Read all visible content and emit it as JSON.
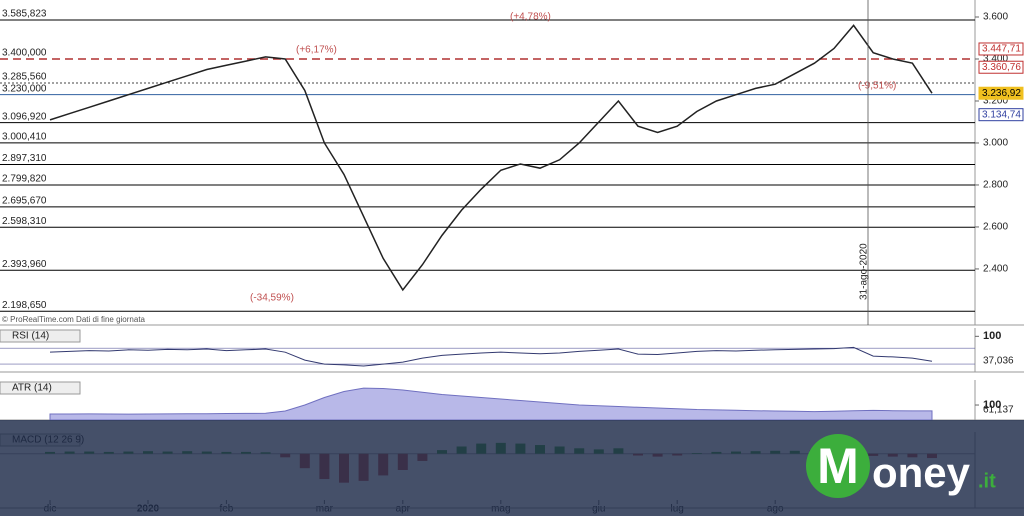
{
  "chart_data": [
    {
      "type": "line",
      "source": "© ProRealTime.com  Dati di fine giornata",
      "categories": [
        "dic",
        null,
        null,
        null,
        null,
        "2020",
        null,
        null,
        null,
        "feb",
        null,
        null,
        null,
        null,
        "mar",
        null,
        null,
        null,
        "apr",
        null,
        null,
        null,
        null,
        "mag",
        null,
        null,
        null,
        null,
        "giu",
        null,
        null,
        null,
        "lug",
        null,
        null,
        null,
        null,
        "ago",
        null,
        null,
        null,
        null,
        null,
        null,
        null,
        null
      ],
      "series": [
        {
          "name": "Prezzo",
          "color": "#222222",
          "values": [
            3110,
            3140,
            3170,
            3200,
            3230,
            3260,
            3290,
            3320,
            3350,
            3370,
            3390,
            3410,
            3400,
            3250,
            3000,
            2850,
            2650,
            2450,
            2300,
            2420,
            2560,
            2680,
            2780,
            2870,
            2900,
            2880,
            2920,
            3000,
            3100,
            3200,
            3080,
            3050,
            3080,
            3150,
            3200,
            3230,
            3260,
            3280,
            3330,
            3380,
            3450,
            3560,
            3430,
            3400,
            3380,
            3237
          ]
        }
      ],
      "ylim": [
        2133,
        3681
      ],
      "yticks": [
        {
          "value": 2400,
          "label": "2.400"
        },
        {
          "value": 2600,
          "label": "2.600"
        },
        {
          "value": 2800,
          "label": "2.800"
        },
        {
          "value": 3000,
          "label": "3.000"
        },
        {
          "value": 3200,
          "label": "3.200"
        },
        {
          "value": 3400,
          "label": "3.400"
        },
        {
          "value": 3600,
          "label": "3.600"
        }
      ],
      "levels": [
        {
          "value": 3585.823,
          "label": "3.585,823",
          "color": "#000000"
        },
        {
          "value": 3400,
          "label": "3.400,000",
          "color": "#b03030"
        },
        {
          "value": 3285.56,
          "label": "3.285,560",
          "color": "#444444"
        },
        {
          "value": 3230,
          "label": "3.230,000",
          "color": "#3060a0"
        },
        {
          "value": 3096.92,
          "label": "3.096,920",
          "color": "#000000"
        },
        {
          "value": 3000.41,
          "label": "3.000,410",
          "color": "#000000"
        },
        {
          "value": 2897.31,
          "label": "2.897,310",
          "color": "#000000"
        },
        {
          "value": 2799.82,
          "label": "2.799,820",
          "color": "#000000"
        },
        {
          "value": 2695.67,
          "label": "2.695,670",
          "color": "#000000"
        },
        {
          "value": 2598.31,
          "label": "2.598,310",
          "color": "#000000"
        },
        {
          "value": 2393.96,
          "label": "2.393,960",
          "color": "#000000"
        },
        {
          "value": 2198.65,
          "label": "2.198,650",
          "color": "#000000"
        }
      ],
      "price_labels": [
        {
          "value": 3447.71,
          "label": "3.447,71",
          "color": "#c03030"
        },
        {
          "value": 3360.76,
          "label": "3.360,76",
          "color": "#c03030"
        },
        {
          "value": 3236.92,
          "label": "3.236,92",
          "color": "#f0c020"
        },
        {
          "value": 3134.74,
          "label": "3.134,74",
          "color": "#3040a0"
        }
      ],
      "annotations": [
        "(+6,17%)",
        "(+4,78%)",
        "(-34,59%)",
        "(-9,51%)",
        "31-ago-2020"
      ]
    },
    {
      "type": "line",
      "title": "RSI (14)",
      "current": "37,036",
      "series": [
        {
          "name": "RSI",
          "color": "#333a70",
          "values": [
            60,
            62,
            64,
            63,
            66,
            65,
            67,
            66,
            68,
            64,
            66,
            68,
            60,
            40,
            30,
            28,
            25,
            30,
            35,
            45,
            52,
            55,
            58,
            60,
            58,
            56,
            58,
            62,
            65,
            68,
            55,
            54,
            58,
            62,
            64,
            63,
            65,
            66,
            67,
            68,
            69,
            72,
            50,
            48,
            45,
            37
          ]
        }
      ],
      "ylim": [
        10,
        121
      ],
      "yticks": [
        100
      ],
      "levels": [
        70,
        30
      ]
    },
    {
      "type": "area",
      "title": "ATR (14)",
      "current": "61,137",
      "series": [
        {
          "name": "ATR",
          "color": "#7070c0",
          "values": [
            40,
            40,
            41,
            40,
            39,
            40,
            41,
            42,
            42,
            43,
            44,
            45,
            60,
            100,
            150,
            190,
            213,
            210,
            200,
            185,
            170,
            160,
            150,
            140,
            130,
            120,
            110,
            100,
            95,
            90,
            85,
            80,
            75,
            70,
            68,
            65,
            62,
            60,
            58,
            56,
            58,
            62,
            64,
            62,
            61,
            61
          ]
        }
      ],
      "ylim": [
        0,
        267
      ],
      "yticks": [
        100
      ]
    },
    {
      "type": "bar",
      "title": "MACD (12 26 9)",
      "series": [
        {
          "name": "MACD",
          "color": "#40a040",
          "values": [
            5,
            6,
            6,
            5,
            6,
            7,
            6,
            7,
            6,
            5,
            5,
            4,
            -10,
            -40,
            -70,
            -80,
            -75,
            -60,
            -45,
            -20,
            10,
            20,
            28,
            30,
            28,
            24,
            20,
            15,
            12,
            15,
            -5,
            -8,
            -5,
            2,
            5,
            6,
            7,
            8,
            8,
            9,
            10,
            12,
            -6,
            -8,
            -10,
            -12
          ]
        }
      ],
      "ylim": [
        -150,
        60
      ],
      "yticks": []
    }
  ],
  "watermark": {
    "initial": "M",
    "text": "oney",
    "suffix": ".it"
  }
}
